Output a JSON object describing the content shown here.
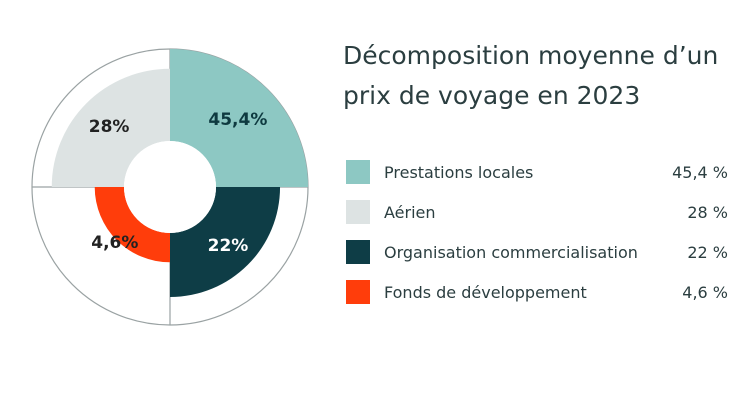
{
  "chart_data": {
    "type": "pie",
    "title": "Décomposition moyenne d’un prix de voyage en 2023",
    "series": [
      {
        "name": "Prestations locales",
        "value": 45.4,
        "label": "45,4%",
        "legend_value": "45,4 %",
        "color": "#8dc8c3",
        "label_color": "#0e3a40"
      },
      {
        "name": "Aérien",
        "value": 28,
        "label": "28%",
        "legend_value": "28 %",
        "color": "#dde3e3",
        "label_color": "#222222"
      },
      {
        "name": "Organisation commercialisation",
        "value": 22,
        "label": "22%",
        "legend_value": "22 %",
        "color": "#0e3d46",
        "label_color": "#ffffff"
      },
      {
        "name": "Fonds de développement",
        "value": 4.6,
        "label": "4,6%",
        "legend_value": "4,6 %",
        "color": "#ff3d0b",
        "label_color": "#222222"
      }
    ],
    "legend_position": "right",
    "ring_outline_color": "#9aa2a3"
  }
}
